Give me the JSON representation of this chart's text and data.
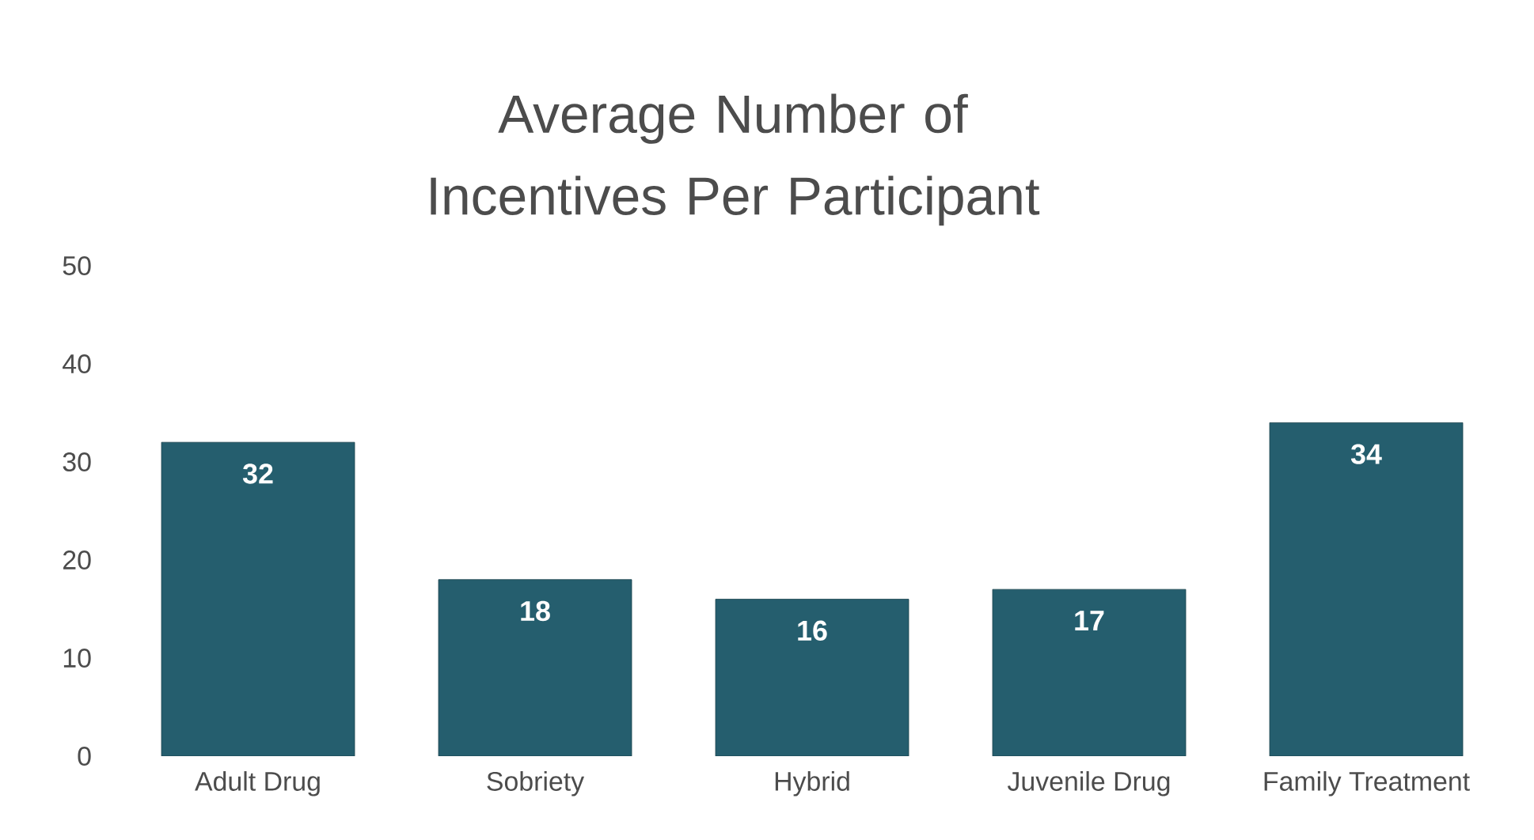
{
  "chart_data": {
    "type": "bar",
    "title": "Average Number of Incentives Per Participant",
    "categories": [
      "Adult Drug",
      "Sobriety",
      "Hybrid",
      "Juvenile Drug",
      "Family Treatment"
    ],
    "values": [
      32,
      18,
      16,
      17,
      34
    ],
    "color": "#255e6e",
    "ylim": [
      0,
      50
    ],
    "yticks": [
      0,
      10,
      20,
      30,
      40,
      50
    ],
    "data_labels": true
  }
}
